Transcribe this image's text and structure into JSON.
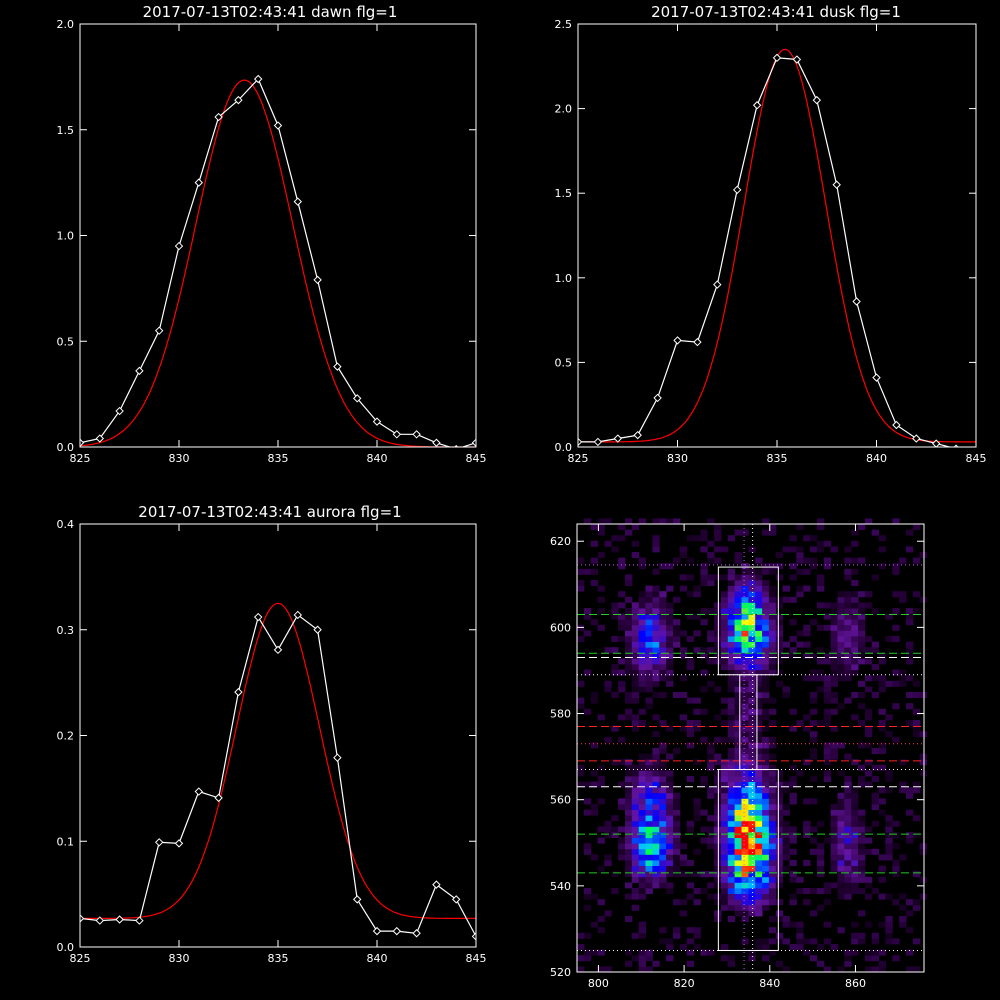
{
  "chart_data": [
    {
      "type": "line",
      "title": "2017-07-13T02:43:41 dawn flg=1",
      "xlim": [
        825,
        845
      ],
      "ylim": [
        0.0,
        2.0
      ],
      "x_ticks": [
        "825",
        "830",
        "835",
        "840",
        "845"
      ],
      "y_ticks": [
        "0.0",
        "0.5",
        "1.0",
        "1.5",
        "2.0"
      ],
      "series": [
        {
          "style": "observed",
          "color": "#ffffff",
          "marker": "diamond",
          "x": [
            825,
            826,
            827,
            828,
            829,
            830,
            831,
            832,
            833,
            834,
            835,
            836,
            837,
            838,
            839,
            840,
            841,
            842,
            843,
            844,
            845
          ],
          "y": [
            0.02,
            0.04,
            0.17,
            0.36,
            0.55,
            0.95,
            1.25,
            1.56,
            1.64,
            1.74,
            1.52,
            1.16,
            0.79,
            0.38,
            0.23,
            0.12,
            0.06,
            0.06,
            0.02,
            -0.01,
            0.02
          ]
        },
        {
          "style": "fit",
          "color": "#ff0000",
          "function": "gaussian",
          "amplitude": 1.735,
          "center": 833.3,
          "sigma": 2.45,
          "offset": 0.0
        }
      ]
    },
    {
      "type": "line",
      "title": "2017-07-13T02:43:41 dusk flg=1",
      "xlim": [
        825,
        845
      ],
      "ylim": [
        0.0,
        2.5
      ],
      "x_ticks": [
        "825",
        "830",
        "835",
        "840",
        "845"
      ],
      "y_ticks": [
        "0.0",
        "0.5",
        "1.0",
        "1.5",
        "2.0",
        "2.5"
      ],
      "series": [
        {
          "style": "observed",
          "color": "#ffffff",
          "marker": "diamond",
          "x": [
            825,
            826,
            827,
            828,
            829,
            830,
            831,
            832,
            833,
            834,
            835,
            836,
            837,
            838,
            839,
            840,
            841,
            842,
            843,
            844,
            845
          ],
          "y": [
            0.03,
            0.03,
            0.05,
            0.07,
            0.29,
            0.63,
            0.62,
            0.96,
            1.52,
            2.02,
            2.3,
            2.29,
            2.05,
            1.55,
            0.86,
            0.41,
            0.13,
            0.05,
            0.02,
            -0.01,
            -0.02
          ]
        },
        {
          "style": "fit",
          "color": "#ff0000",
          "function": "gaussian",
          "amplitude": 2.32,
          "center": 835.4,
          "sigma": 2.05,
          "offset": 0.03
        }
      ]
    },
    {
      "type": "line",
      "title": "2017-07-13T02:43:41 aurora flg=1",
      "xlim": [
        825,
        845
      ],
      "ylim": [
        0.0,
        0.4
      ],
      "x_ticks": [
        "825",
        "830",
        "835",
        "840",
        "845"
      ],
      "y_ticks": [
        "0.0",
        "0.1",
        "0.2",
        "0.3",
        "0.4"
      ],
      "series": [
        {
          "style": "observed",
          "color": "#ffffff",
          "marker": "diamond",
          "x": [
            825,
            826,
            827,
            828,
            829,
            830,
            831,
            832,
            833,
            834,
            835,
            836,
            837,
            838,
            839,
            840,
            841,
            842,
            843,
            844,
            845
          ],
          "y": [
            0.027,
            0.025,
            0.026,
            0.025,
            0.099,
            0.098,
            0.147,
            0.141,
            0.241,
            0.312,
            0.281,
            0.314,
            0.3,
            0.179,
            0.045,
            0.015,
            0.015,
            0.013,
            0.059,
            0.045,
            0.01
          ]
        },
        {
          "style": "fit",
          "color": "#ff0000",
          "function": "gaussian",
          "amplitude": 0.298,
          "center": 835.0,
          "sigma": 2.1,
          "offset": 0.027
        }
      ]
    },
    {
      "type": "heatmap",
      "xlim": [
        795,
        876
      ],
      "ylim": [
        520,
        624
      ],
      "x_ticks": [
        800,
        820,
        840,
        860
      ],
      "y_ticks": [
        520,
        540,
        560,
        580,
        600,
        620
      ],
      "colormap": "rainbow",
      "blobs": [
        {
          "x": 835,
          "y": 549,
          "sx": 3.5,
          "sy": 4.5,
          "peak": 1.0
        },
        {
          "x": 835,
          "y": 558,
          "sx": 3.5,
          "sy": 6,
          "peak": 0.65
        },
        {
          "x": 835,
          "y": 540,
          "sx": 3.5,
          "sy": 3.5,
          "peak": 0.45
        },
        {
          "x": 835,
          "y": 598,
          "sx": 3.5,
          "sy": 4.5,
          "peak": 0.75
        },
        {
          "x": 835,
          "y": 606,
          "sx": 3,
          "sy": 3.5,
          "peak": 0.4
        },
        {
          "x": 812,
          "y": 549,
          "sx": 3,
          "sy": 4.5,
          "peak": 0.7
        },
        {
          "x": 812,
          "y": 560,
          "sx": 3,
          "sy": 5,
          "peak": 0.35
        },
        {
          "x": 812,
          "y": 597,
          "sx": 3,
          "sy": 6,
          "peak": 0.4
        },
        {
          "x": 858,
          "y": 550,
          "sx": 2.5,
          "sy": 7,
          "peak": 0.22
        },
        {
          "x": 858,
          "y": 598,
          "sx": 2.5,
          "sy": 6,
          "peak": 0.2
        },
        {
          "x": 835,
          "y": 578,
          "sx": 3,
          "sy": 8,
          "peak": 0.12
        }
      ],
      "boxes": [
        {
          "x0": 828,
          "x1": 842,
          "y0": 589,
          "y1": 614,
          "color": "#ffffff"
        },
        {
          "x0": 828,
          "x1": 842,
          "y0": 525,
          "y1": 567,
          "color": "#ffffff"
        },
        {
          "x0": 833,
          "x1": 837,
          "y0": 567,
          "y1": 589,
          "color": "#ffffff"
        }
      ],
      "hlines": [
        {
          "y": 614.5,
          "style": "dotted",
          "color": "#cc55ff"
        },
        {
          "y": 603,
          "style": "dashed",
          "color": "#22cc22"
        },
        {
          "y": 594,
          "style": "dashed",
          "color": "#22cc22"
        },
        {
          "y": 593,
          "style": "dashed",
          "color": "#ffffff"
        },
        {
          "y": 589,
          "style": "dotted",
          "color": "#ffffff"
        },
        {
          "y": 577,
          "style": "dashed",
          "color": "#ff2222"
        },
        {
          "y": 573,
          "style": "dotted",
          "color": "#ff4444"
        },
        {
          "y": 569,
          "style": "dashed",
          "color": "#ff2222"
        },
        {
          "y": 567,
          "style": "dotted",
          "color": "#ffffff"
        },
        {
          "y": 563,
          "style": "dashed",
          "color": "#ffffff"
        },
        {
          "y": 552,
          "style": "dashed",
          "color": "#22cc22"
        },
        {
          "y": 543,
          "style": "dashed",
          "color": "#22cc22"
        },
        {
          "y": 525,
          "style": "dotted",
          "color": "#ffffff"
        }
      ],
      "vlines": [
        {
          "x": 834,
          "style": "dotted",
          "color": "#cc55ff"
        },
        {
          "x": 836,
          "style": "dotted",
          "color": "#ffffff"
        }
      ]
    }
  ]
}
